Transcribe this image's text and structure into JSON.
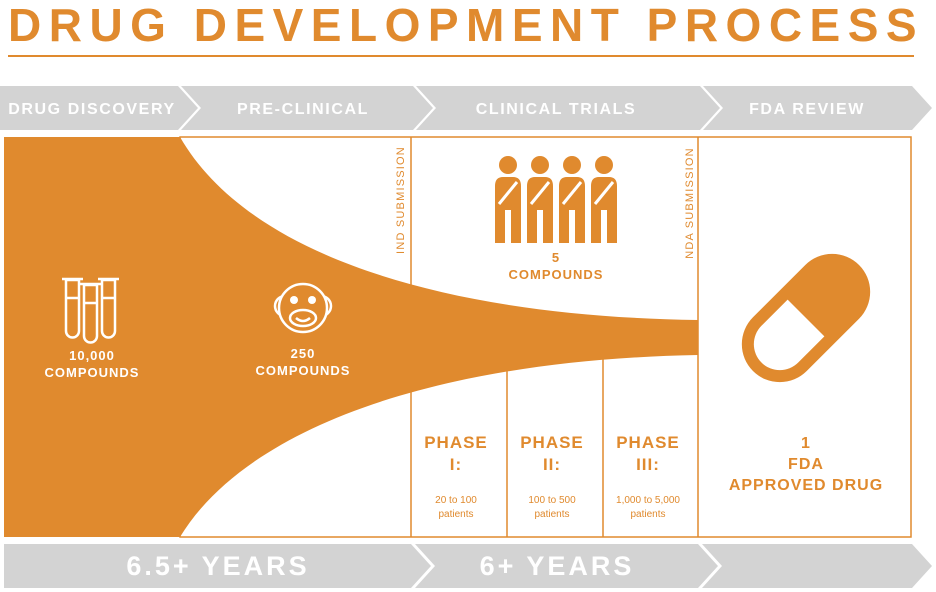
{
  "title": "DRUG DEVELOPMENT PROCESS",
  "colors": {
    "accent": "#E08A2E",
    "band": "#D3D3D3",
    "white": "#FFFFFF"
  },
  "stages": [
    "DRUG DISCOVERY",
    "PRE-CLINICAL",
    "CLINICAL TRIALS",
    "FDA REVIEW"
  ],
  "discovery": {
    "count": "10,000",
    "unit": "COMPOUNDS",
    "icon": "test-tubes-icon"
  },
  "preclinical": {
    "count": "250",
    "unit": "COMPOUNDS",
    "icon": "monkey-icon"
  },
  "clinical": {
    "count": "5",
    "unit": "COMPOUNDS",
    "icon": "people-icon"
  },
  "submissions": {
    "ind": "IND SUBMISSION",
    "nda": "NDA SUBMISSION"
  },
  "phases": [
    {
      "label": "PHASE",
      "numeral": "I:",
      "patients_range": "20 to 100",
      "patients_word": "patients"
    },
    {
      "label": "PHASE",
      "numeral": "II:",
      "patients_range": "100 to 500",
      "patients_word": "patients"
    },
    {
      "label": "PHASE",
      "numeral": "III:",
      "patients_range": "1,000 to 5,000",
      "patients_word": "patients"
    }
  ],
  "review": {
    "count": "1",
    "line1": "FDA",
    "line2": "APPROVED DRUG",
    "icon": "pill-capsule-icon"
  },
  "timeline": [
    "6.5+ YEARS",
    "6+ YEARS"
  ]
}
